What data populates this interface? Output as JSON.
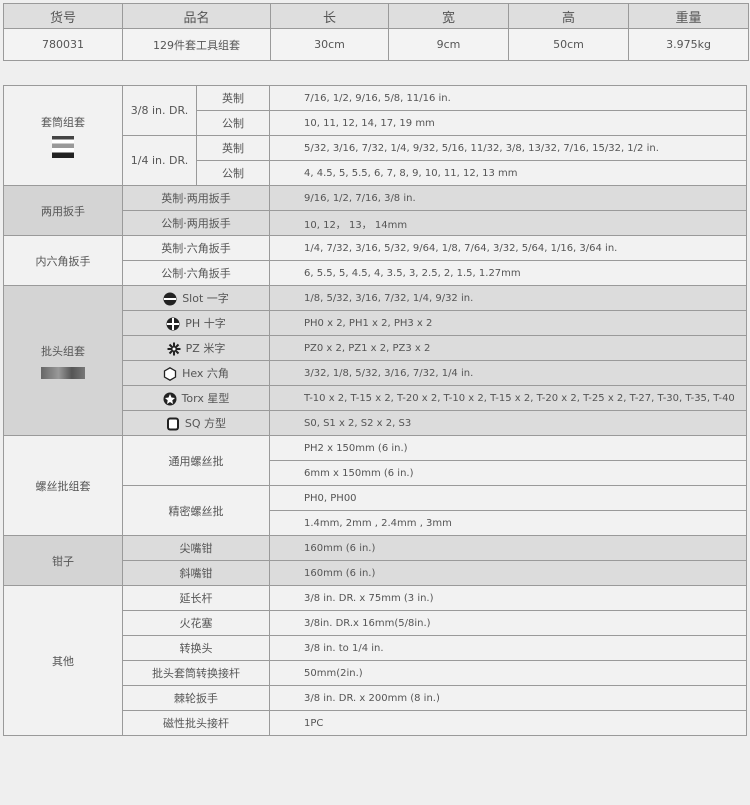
{
  "spec_table": {
    "headers": [
      "货号",
      "品名",
      "长",
      "宽",
      "高",
      "重量"
    ],
    "row": [
      "780031",
      "129件套工具组套",
      "30cm",
      "9cm",
      "50cm",
      "3.975kg"
    ]
  },
  "sections": [
    {
      "title": "套筒组套",
      "shaded": false,
      "image": "socket-image",
      "kind": "drive",
      "rows": [
        {
          "drive": "3/8 in. DR.",
          "type": "英制",
          "value": "7/16, 1/2, 9/16, 5/8, 11/16 in."
        },
        {
          "drive": "3/8 in. DR.",
          "type": "公制",
          "value": "10, 11, 12, 14, 17, 19 mm"
        },
        {
          "drive": "1/4 in. DR.",
          "type": "英制",
          "value": "5/32, 3/16, 7/32, 1/4, 9/32, 5/16, 11/32, 3/8, 13/32, 7/16, 15/32, 1/2 in."
        },
        {
          "drive": "1/4 in. DR.",
          "type": "公制",
          "value": "4, 4.5, 5, 5.5, 6, 7, 8, 9, 10, 11, 12, 13 mm"
        }
      ]
    },
    {
      "title": "两用扳手",
      "shaded": true,
      "kind": "simple",
      "rows": [
        {
          "label": "英制·两用扳手",
          "value": "9/16, 1/2, 7/16, 3/8 in."
        },
        {
          "label": "公制·两用扳手",
          "value": "10, 12， 13， 14mm"
        }
      ]
    },
    {
      "title": "内六角扳手",
      "shaded": false,
      "kind": "simple",
      "rows": [
        {
          "label": "英制·六角扳手",
          "value": "1/4, 7/32, 3/16, 5/32, 9/64, 1/8, 7/64, 3/32, 5/64, 1/16, 3/64 in."
        },
        {
          "label": "公制·六角扳手",
          "value": "6, 5.5, 5, 4.5, 4, 3.5, 3, 2.5, 2, 1.5, 1.27mm"
        }
      ]
    },
    {
      "title": "批头组套",
      "shaded": true,
      "image": "bit-image",
      "kind": "icon",
      "rows": [
        {
          "icon": "slot",
          "label": "Slot 一字",
          "value": "1/8, 5/32, 3/16, 7/32, 1/4, 9/32 in."
        },
        {
          "icon": "phillips",
          "label": "PH 十字",
          "value": "PH0 x 2, PH1 x 2, PH3 x 2"
        },
        {
          "icon": "pozidriv",
          "label": "PZ 米字",
          "value": "PZ0 x 2, PZ1 x 2, PZ3 x 2"
        },
        {
          "icon": "hex",
          "label": "Hex 六角",
          "value": "3/32, 1/8, 5/32, 3/16, 7/32, 1/4 in."
        },
        {
          "icon": "torx",
          "label": "Torx 星型",
          "value": "T-10 x 2, T-15 x 2, T-20 x 2, T-10 x 2, T-15 x 2, T-20 x 2,  T-25 x 2,  T-27,  T-30,  T-35,  T-40"
        },
        {
          "icon": "square",
          "label": "SQ 方型",
          "value": "S0, S1 x 2, S2 x 2, S3"
        }
      ]
    },
    {
      "title": "螺丝批组套",
      "shaded": false,
      "kind": "multi",
      "rows": [
        {
          "label": "通用螺丝批",
          "values": [
            "PH2 x 150mm (6 in.)",
            "6mm x 150mm (6 in.)"
          ]
        },
        {
          "label": "精密螺丝批",
          "values": [
            "PH0, PH00",
            "1.4mm, 2mm , 2.4mm , 3mm"
          ]
        }
      ]
    },
    {
      "title": "钳子",
      "shaded": true,
      "kind": "simple",
      "rows": [
        {
          "label": "尖嘴钳",
          "value": "160mm (6 in.)"
        },
        {
          "label": "斜嘴钳",
          "value": "160mm (6 in.)"
        }
      ]
    },
    {
      "title": "其他",
      "shaded": false,
      "kind": "simple",
      "rows": [
        {
          "label": "延长杆",
          "value": "3/8 in. DR. x 75mm (3 in.)"
        },
        {
          "label": "火花塞",
          "value": "3/8in. DR.x 16mm(5/8in.)"
        },
        {
          "label": "转换头",
          "value": "3/8 in. to 1/4 in."
        },
        {
          "label": "批头套筒转换接杆",
          "value": "50mm(2in.)"
        },
        {
          "label": "棘轮扳手",
          "value": "3/8 in. DR. x 200mm (8 in.)"
        },
        {
          "label": "磁性批头接杆",
          "value": "1PC"
        }
      ]
    }
  ]
}
